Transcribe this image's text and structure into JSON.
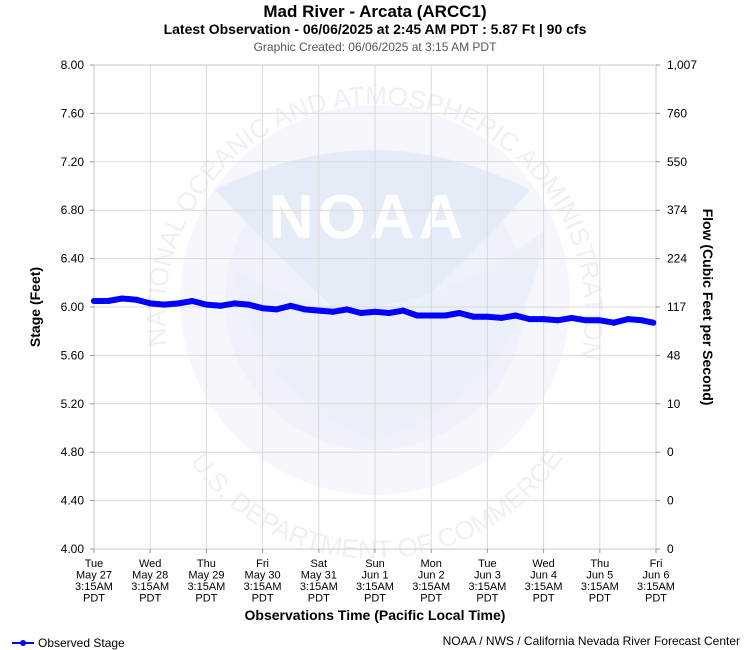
{
  "chart_data": {
    "type": "line",
    "title": "Mad River - Arcata (ARCC1)",
    "subtitle": "Latest Observation - 06/06/2025 at 2:45 AM PDT : 5.87 Ft | 90 cfs",
    "created": "Graphic Created: 06/06/2025 at 3:15 AM PDT",
    "ylabel": "Stage (Feet)",
    "y2label": "Flow (Cubic Feet per Second)",
    "xlabel": "Observations Time (Pacific Local Time)",
    "ylim": [
      4.0,
      8.0
    ],
    "y_ticks": [
      "4.00",
      "4.40",
      "4.80",
      "5.20",
      "5.60",
      "6.00",
      "6.40",
      "6.80",
      "7.20",
      "7.60",
      "8.00"
    ],
    "y2_ticks": [
      "0",
      "0",
      "0",
      "10",
      "48",
      "117",
      "224",
      "374",
      "550",
      "760",
      "1,007"
    ],
    "x_ticks": [
      [
        "Tue",
        "May 27",
        "3:15AM",
        "PDT"
      ],
      [
        "Wed",
        "May 28",
        "3:15AM",
        "PDT"
      ],
      [
        "Thu",
        "May 29",
        "3:15AM",
        "PDT"
      ],
      [
        "Fri",
        "May 30",
        "3:15AM",
        "PDT"
      ],
      [
        "Sat",
        "May 31",
        "3:15AM",
        "PDT"
      ],
      [
        "Sun",
        "Jun 1",
        "3:15AM",
        "PDT"
      ],
      [
        "Mon",
        "Jun 2",
        "3:15AM",
        "PDT"
      ],
      [
        "Tue",
        "Jun 3",
        "3:15AM",
        "PDT"
      ],
      [
        "Wed",
        "Jun 4",
        "3:15AM",
        "PDT"
      ],
      [
        "Thu",
        "Jun 5",
        "3:15AM",
        "PDT"
      ],
      [
        "Fri",
        "Jun 6",
        "3:15AM",
        "PDT"
      ]
    ],
    "grid": true,
    "legend_position": "bottom-left",
    "series": [
      {
        "name": "Observed Stage",
        "color": "#0000ff",
        "x_days": [
          0,
          0.25,
          0.5,
          0.75,
          1.0,
          1.25,
          1.5,
          1.75,
          2.0,
          2.25,
          2.5,
          2.75,
          3.0,
          3.25,
          3.5,
          3.75,
          4.0,
          4.25,
          4.5,
          4.75,
          5.0,
          5.25,
          5.5,
          5.75,
          6.0,
          6.25,
          6.5,
          6.75,
          7.0,
          7.25,
          7.5,
          7.75,
          8.0,
          8.25,
          8.5,
          8.75,
          9.0,
          9.25,
          9.5,
          9.75,
          9.95
        ],
        "values": [
          6.05,
          6.05,
          6.07,
          6.06,
          6.03,
          6.02,
          6.03,
          6.05,
          6.02,
          6.01,
          6.03,
          6.02,
          5.99,
          5.98,
          6.01,
          5.98,
          5.97,
          5.96,
          5.98,
          5.95,
          5.96,
          5.95,
          5.97,
          5.93,
          5.93,
          5.93,
          5.95,
          5.92,
          5.92,
          5.91,
          5.93,
          5.9,
          5.9,
          5.89,
          5.91,
          5.89,
          5.89,
          5.87,
          5.9,
          5.89,
          5.87
        ]
      }
    ]
  },
  "footer": {
    "legend_label": "Observed Stage",
    "source": "NOAA / NWS / California Nevada River Forecast Center"
  },
  "watermark": {
    "logo_text": "NOAA",
    "ring_text_top": "NATIONAL OCEANIC AND ATMOSPHERIC ADMINISTRATION",
    "ring_text_bottom": "U.S. DEPARTMENT OF COMMERCE"
  },
  "colors": {
    "series": "#0000ff",
    "watermark": "#e6ebf7"
  }
}
